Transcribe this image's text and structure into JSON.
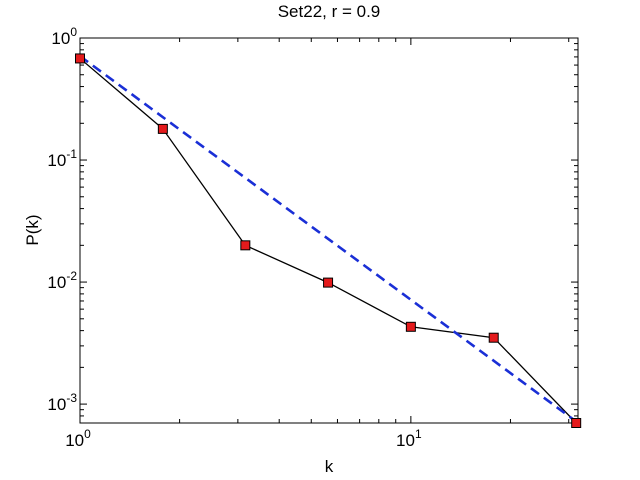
{
  "chart_data": {
    "type": "line",
    "title": "Set22, r = 0.9",
    "xlabel": "k",
    "ylabel": "P(k)",
    "xscale": "log",
    "yscale": "log",
    "xlim": [
      1,
      32
    ],
    "ylim": [
      0.0007,
      1
    ],
    "grid": false,
    "legend": "none",
    "x_ticks": [
      {
        "value": 1,
        "base": "10",
        "exp": "0"
      },
      {
        "value": 10,
        "base": "10",
        "exp": "1"
      }
    ],
    "y_ticks": [
      {
        "value": 1,
        "base": "10",
        "exp": "0"
      },
      {
        "value": 0.1,
        "base": "10",
        "exp": "-1"
      },
      {
        "value": 0.01,
        "base": "10",
        "exp": "-2"
      },
      {
        "value": 0.001,
        "base": "10",
        "exp": "-3"
      }
    ],
    "series": [
      {
        "style": "solid-with-square-markers",
        "line_color": "#000000",
        "marker_color": "#e41a1c",
        "x": [
          1,
          1.78,
          3.16,
          5.62,
          10,
          17.8,
          31.6
        ],
        "y": [
          0.68,
          0.18,
          0.02,
          0.0099,
          0.0043,
          0.0035,
          0.0007
        ]
      },
      {
        "style": "dashed-fit",
        "line_color": "#1a2fd6",
        "x": [
          1,
          31.6
        ],
        "y": [
          0.71,
          0.00072
        ]
      }
    ]
  }
}
